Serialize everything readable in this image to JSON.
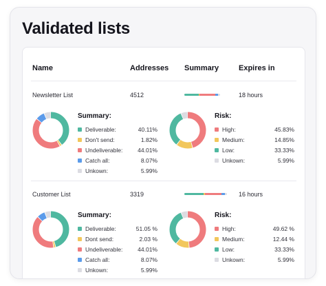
{
  "page": {
    "title": "Validated lists"
  },
  "colors": {
    "deliverable": "#4fb8a0",
    "dont_send": "#f2c75c",
    "undeliverable": "#ef7b7d",
    "catch_all": "#5b9bea",
    "unknown": "#dcdce2",
    "high": "#ef7b7d",
    "medium": "#f2c75c",
    "low": "#4fb8a0"
  },
  "table": {
    "headers": {
      "name": "Name",
      "addresses": "Addresses",
      "summary": "Summary",
      "expires": "Expires in"
    }
  },
  "lists": [
    {
      "name": "Newsletter List",
      "addresses": "4512",
      "expires": "18 hours",
      "summary": {
        "title": "Summary:",
        "items": [
          {
            "label": "Deliverable:",
            "value": "40.11%",
            "color": "#4fb8a0",
            "pct": 40.11
          },
          {
            "label": "Don't send:",
            "value": "1.82%",
            "color": "#f2c75c",
            "pct": 1.82
          },
          {
            "label": "Undeliverable:",
            "value": "44.01%",
            "color": "#ef7b7d",
            "pct": 44.01
          },
          {
            "label": "Catch all:",
            "value": "8.07%",
            "color": "#5b9bea",
            "pct": 8.07
          },
          {
            "label": "Unkown:",
            "value": "5.99%",
            "color": "#dcdce2",
            "pct": 5.99
          }
        ]
      },
      "risk": {
        "title": "Risk:",
        "items": [
          {
            "label": "High:",
            "value": "45.83%",
            "color": "#ef7b7d",
            "pct": 45.83
          },
          {
            "label": "Medium:",
            "value": "14.85%",
            "color": "#f2c75c",
            "pct": 14.85
          },
          {
            "label": "Low:",
            "value": "33.33%",
            "color": "#4fb8a0",
            "pct": 33.33
          },
          {
            "label": "Unkown:",
            "value": "5.99%",
            "color": "#dcdce2",
            "pct": 5.99
          }
        ]
      }
    },
    {
      "name": "Customer List",
      "addresses": "3319",
      "expires": "16 hours",
      "summary": {
        "title": "Summary:",
        "items": [
          {
            "label": "Deliverable:",
            "value": "51.05 %",
            "color": "#4fb8a0",
            "pct": 51.05
          },
          {
            "label": "Dont send:",
            "value": "2.03 %",
            "color": "#f2c75c",
            "pct": 2.03
          },
          {
            "label": "Undeliverable:",
            "value": "44.01%",
            "color": "#ef7b7d",
            "pct": 44.01
          },
          {
            "label": "Catch all:",
            "value": "8.07%",
            "color": "#5b9bea",
            "pct": 8.07
          },
          {
            "label": "Unkown:",
            "value": "5.99%",
            "color": "#dcdce2",
            "pct": 5.99
          }
        ]
      },
      "risk": {
        "title": "Risk:",
        "items": [
          {
            "label": "High:",
            "value": "49.62 %",
            "color": "#ef7b7d",
            "pct": 49.62
          },
          {
            "label": "Medium:",
            "value": "12.44 %",
            "color": "#f2c75c",
            "pct": 12.44
          },
          {
            "label": "Low:",
            "value": "33.33%",
            "color": "#4fb8a0",
            "pct": 33.33
          },
          {
            "label": "Unkown:",
            "value": "5.99%",
            "color": "#dcdce2",
            "pct": 5.99
          }
        ]
      }
    }
  ]
}
